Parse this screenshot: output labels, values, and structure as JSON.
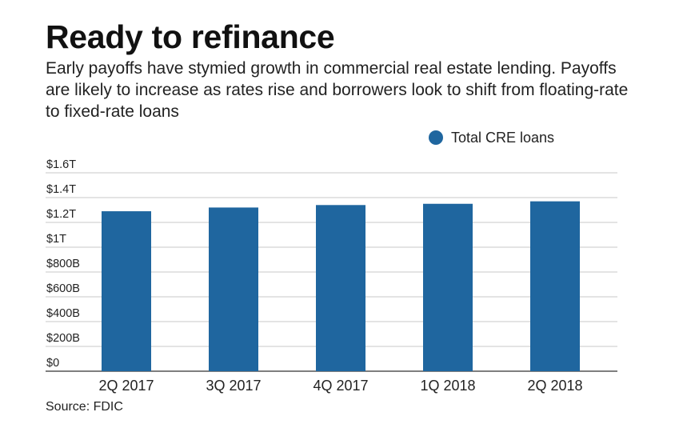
{
  "title": "Ready to refinance",
  "subtitle": "Early payoffs have stymied growth in commercial real estate lending. Payoffs are likely to increase as rates rise and borrowers look to shift from floating-rate to fixed-rate loans",
  "source": "Source: FDIC",
  "colors": {
    "bar": "#1f669f",
    "grid": "#c8c8c8",
    "axis": "#555555"
  },
  "chart_data": {
    "type": "bar",
    "title": "Ready to refinance",
    "xlabel": "",
    "ylabel": "",
    "categories": [
      "2Q 2017",
      "3Q 2017",
      "4Q 2017",
      "1Q 2018",
      "2Q 2018"
    ],
    "series": [
      {
        "name": "Total CRE loans",
        "values": [
          1.29,
          1.32,
          1.34,
          1.35,
          1.37
        ]
      }
    ],
    "ylim": [
      0,
      1.6
    ],
    "yticks": [
      0,
      0.2,
      0.4,
      0.6,
      0.8,
      1.0,
      1.2,
      1.4,
      1.6
    ],
    "ytick_labels": [
      "$0",
      "$200B",
      "$400B",
      "$600B",
      "$800B",
      "$1T",
      "$1.2T",
      "$1.4T",
      "$1.6T"
    ],
    "units": "trillions of dollars",
    "grid": true,
    "legend": "top-right"
  }
}
